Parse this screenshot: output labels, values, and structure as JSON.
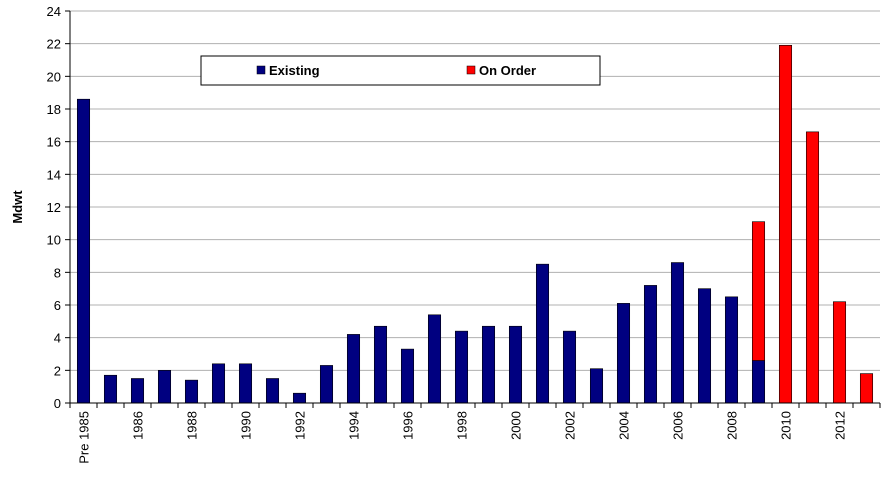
{
  "chart_data": {
    "type": "stacked_bar",
    "ylabel": "Mdwt",
    "categories": [
      "Pre 1985",
      null,
      "1986",
      null,
      "1988",
      null,
      "1990",
      null,
      "1992",
      null,
      "1994",
      null,
      "1996",
      null,
      "1998",
      null,
      "2000",
      null,
      "2002",
      null,
      "2004",
      null,
      "2006",
      null,
      "2008",
      null,
      "2010",
      null,
      "2012",
      null
    ],
    "series": [
      {
        "name": "Existing",
        "color": "#000080",
        "values": [
          18.6,
          1.7,
          1.5,
          2.0,
          1.4,
          2.4,
          2.4,
          1.5,
          0.6,
          2.3,
          4.2,
          4.7,
          3.3,
          5.4,
          4.4,
          4.7,
          4.7,
          8.5,
          4.4,
          2.1,
          6.1,
          7.2,
          8.6,
          7.0,
          6.5,
          2.6,
          null,
          null,
          null,
          null
        ]
      },
      {
        "name": "On Order",
        "color": "#ff0000",
        "values": [
          null,
          null,
          null,
          null,
          null,
          null,
          null,
          null,
          null,
          null,
          null,
          null,
          null,
          null,
          null,
          null,
          null,
          null,
          null,
          null,
          null,
          null,
          null,
          null,
          null,
          8.5,
          21.9,
          16.6,
          6.2,
          1.8
        ]
      }
    ],
    "ylim": [
      0,
      24
    ],
    "yticks": [
      0,
      2,
      4,
      6,
      8,
      10,
      12,
      14,
      16,
      18,
      20,
      22,
      24
    ],
    "grid": true,
    "legend": "top"
  }
}
